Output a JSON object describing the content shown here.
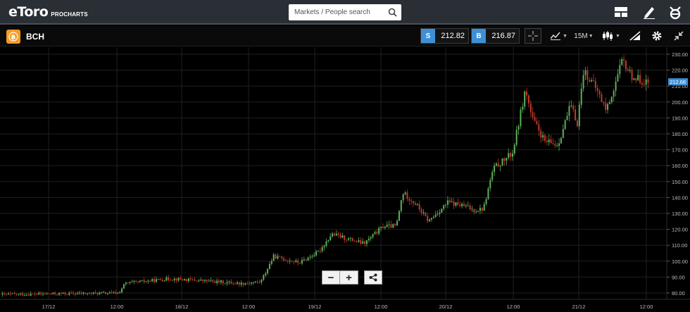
{
  "header": {
    "logo_text": "eToro",
    "logo_sub": "PROCHARTS",
    "search_placeholder": "Markets / People search",
    "icons": [
      "layout-icon",
      "edit-icon",
      "etoro-e-icon"
    ]
  },
  "instrument": {
    "symbol": "BCH",
    "icon": "bitcoin-cash-icon",
    "sell_label": "S",
    "sell_price": "212.82",
    "buy_label": "B",
    "buy_price": "216.87",
    "timeframe": "15M",
    "tools": [
      "crosshair-icon",
      "indicators-icon",
      "timeframe-select",
      "chart-type-icon",
      "drawing-icon",
      "settings-icon",
      "collapse-icon"
    ]
  },
  "colors": {
    "accent_blue": "#3d8fd6",
    "up_candle": "#5fae5a",
    "down_candle": "#c0392b",
    "coin_orange": "#f39c25"
  },
  "chart_data": {
    "type": "candlestick",
    "instrument": "BCH",
    "timeframe": "15M",
    "current_price": "212.68",
    "ylim": [
      75,
      233
    ],
    "y_ticks": [
      "230.00",
      "220.00",
      "210.00",
      "200.00",
      "190.00",
      "180.00",
      "170.00",
      "160.00",
      "150.00",
      "140.00",
      "130.00",
      "120.00",
      "110.00",
      "100.00",
      "90.00",
      "80.00"
    ],
    "x_ticks": [
      "17/12",
      "12:00",
      "18/12",
      "12:00",
      "19/12",
      "12:00",
      "20/12",
      "12:00",
      "21/12",
      "12:00"
    ],
    "price_path_approx": [
      {
        "t": 0.0,
        "p": 79
      },
      {
        "t": 0.18,
        "p": 80
      },
      {
        "t": 0.19,
        "p": 86
      },
      {
        "t": 0.26,
        "p": 89
      },
      {
        "t": 0.37,
        "p": 86
      },
      {
        "t": 0.4,
        "p": 87
      },
      {
        "t": 0.42,
        "p": 103
      },
      {
        "t": 0.46,
        "p": 99
      },
      {
        "t": 0.49,
        "p": 106
      },
      {
        "t": 0.51,
        "p": 117
      },
      {
        "t": 0.56,
        "p": 111
      },
      {
        "t": 0.59,
        "p": 122
      },
      {
        "t": 0.61,
        "p": 122
      },
      {
        "t": 0.62,
        "p": 143
      },
      {
        "t": 0.64,
        "p": 136
      },
      {
        "t": 0.66,
        "p": 125
      },
      {
        "t": 0.69,
        "p": 137
      },
      {
        "t": 0.72,
        "p": 134
      },
      {
        "t": 0.73,
        "p": 132
      },
      {
        "t": 0.745,
        "p": 133
      },
      {
        "t": 0.76,
        "p": 158
      },
      {
        "t": 0.79,
        "p": 168
      },
      {
        "t": 0.81,
        "p": 208
      },
      {
        "t": 0.82,
        "p": 190
      },
      {
        "t": 0.84,
        "p": 175
      },
      {
        "t": 0.86,
        "p": 173
      },
      {
        "t": 0.88,
        "p": 198
      },
      {
        "t": 0.89,
        "p": 186
      },
      {
        "t": 0.9,
        "p": 220
      },
      {
        "t": 0.92,
        "p": 208
      },
      {
        "t": 0.935,
        "p": 195
      },
      {
        "t": 0.945,
        "p": 206
      },
      {
        "t": 0.96,
        "p": 226
      },
      {
        "t": 0.975,
        "p": 216
      },
      {
        "t": 1.0,
        "p": 212
      }
    ]
  },
  "controls": {
    "zoom_out": "−",
    "zoom_in": "+"
  }
}
